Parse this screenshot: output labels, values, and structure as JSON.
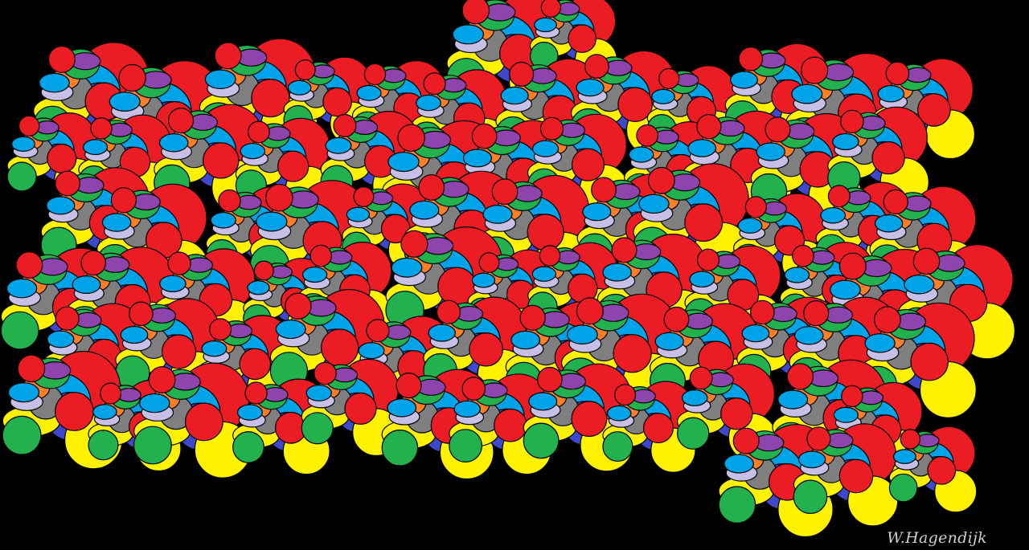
{
  "artwork": {
    "signature": "W.Hagendijk",
    "background": "#000000",
    "outline_color": "#000000",
    "palette": {
      "red": "#ec1c24",
      "yellow": "#fff200",
      "blue": "#00a2e8",
      "dark_blue": "#3f48cc",
      "green": "#22b14c",
      "purple": "#8e44ad",
      "lavender": "#c8bfe7",
      "gray": "#7f7f7f",
      "orange": "#ff7f27"
    }
  }
}
